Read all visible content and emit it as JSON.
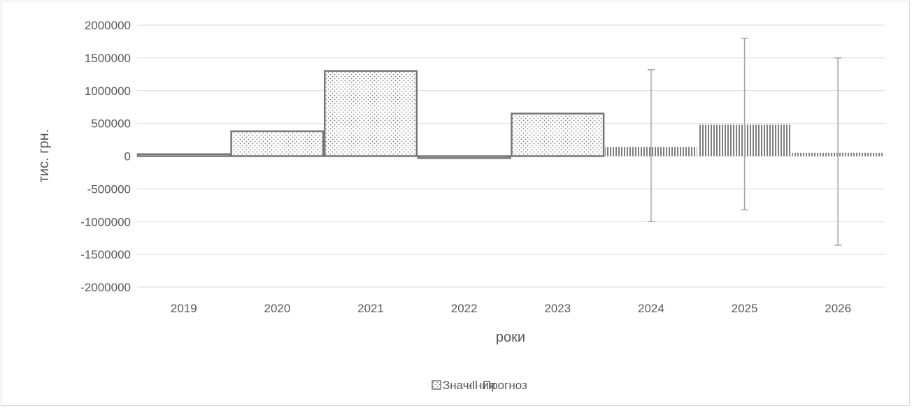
{
  "chart_data": {
    "type": "bar",
    "categories": [
      "2019",
      "2020",
      "2021",
      "2022",
      "2023",
      "2024",
      "2025",
      "2026"
    ],
    "series": [
      {
        "name": "Значения",
        "values": [
          30000,
          380000,
          1300000,
          -30000,
          650000,
          null,
          null,
          null
        ],
        "pattern": "dots"
      },
      {
        "name": "Прогноз",
        "values": [
          null,
          null,
          null,
          null,
          null,
          140000,
          480000,
          50000
        ],
        "pattern": "vertical-lines",
        "error_bars": [
          [
            -1000000,
            1320000
          ],
          [
            -820000,
            1800000
          ],
          [
            -1360000,
            1500000
          ]
        ]
      }
    ],
    "xlabel": "роки",
    "ylabel": "тис. грн.",
    "ylim": [
      -2000000,
      2000000
    ],
    "yticks": [
      2000000,
      1500000,
      1000000,
      500000,
      0,
      -500000,
      -1000000,
      -1500000,
      -2000000
    ],
    "grid": true,
    "legend": "bottom",
    "colors": {
      "bar_edge": "#767676",
      "pattern": "#7f7f7f",
      "grid": "#d9d9d9",
      "text": "#595959",
      "error": "#a6a6a6"
    }
  }
}
